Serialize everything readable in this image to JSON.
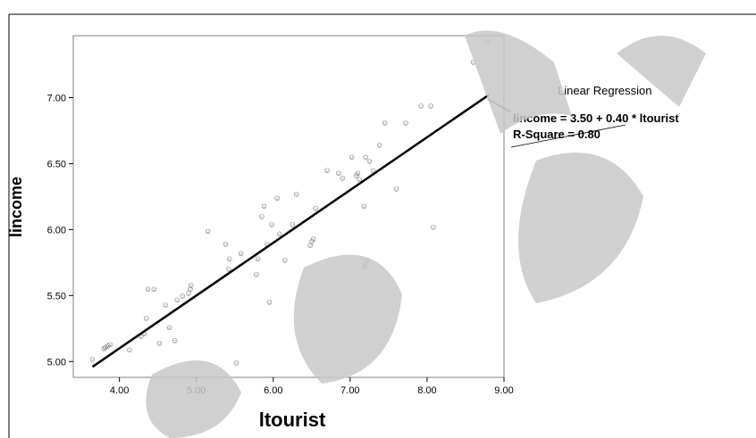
{
  "chart_data": {
    "type": "scatter",
    "title": "",
    "xlabel": "ltourist",
    "ylabel": "lincome",
    "xlim": [
      3.4,
      9.0
    ],
    "ylim": [
      4.88,
      7.47
    ],
    "x_ticks": [
      "4.00",
      "5.00",
      "6.00",
      "7.00",
      "8.00",
      "9.00"
    ],
    "y_ticks": [
      "5.00",
      "5.50",
      "6.00",
      "6.50",
      "7.00"
    ],
    "grid": false,
    "marker_symbol": "☺",
    "points": [
      [
        3.65,
        5.02
      ],
      [
        3.8,
        5.1
      ],
      [
        3.82,
        5.11
      ],
      [
        3.85,
        5.12
      ],
      [
        3.88,
        5.13
      ],
      [
        4.13,
        5.09
      ],
      [
        4.28,
        5.19
      ],
      [
        4.32,
        5.21
      ],
      [
        4.35,
        5.33
      ],
      [
        4.37,
        5.55
      ],
      [
        4.45,
        5.55
      ],
      [
        4.52,
        5.14
      ],
      [
        4.6,
        5.43
      ],
      [
        4.65,
        5.26
      ],
      [
        4.72,
        5.16
      ],
      [
        4.75,
        5.47
      ],
      [
        4.82,
        5.5
      ],
      [
        4.9,
        5.52
      ],
      [
        4.92,
        5.55
      ],
      [
        4.93,
        5.58
      ],
      [
        5.15,
        5.99
      ],
      [
        5.38,
        5.89
      ],
      [
        5.42,
        5.7
      ],
      [
        5.43,
        5.78
      ],
      [
        5.52,
        4.99
      ],
      [
        5.58,
        5.82
      ],
      [
        5.78,
        5.66
      ],
      [
        5.8,
        5.78
      ],
      [
        5.85,
        6.1
      ],
      [
        5.88,
        6.18
      ],
      [
        5.92,
        5.89
      ],
      [
        5.95,
        5.45
      ],
      [
        5.98,
        6.04
      ],
      [
        6.05,
        6.24
      ],
      [
        6.08,
        5.97
      ],
      [
        6.15,
        5.77
      ],
      [
        6.25,
        6.04
      ],
      [
        6.3,
        6.27
      ],
      [
        6.48,
        5.88
      ],
      [
        6.5,
        5.91
      ],
      [
        6.52,
        5.93
      ],
      [
        6.55,
        6.16
      ],
      [
        6.7,
        6.45
      ],
      [
        6.85,
        6.43
      ],
      [
        6.9,
        6.39
      ],
      [
        7.02,
        6.55
      ],
      [
        7.08,
        6.41
      ],
      [
        7.1,
        6.43
      ],
      [
        7.12,
        6.38
      ],
      [
        7.18,
        6.18
      ],
      [
        7.18,
        5.72
      ],
      [
        7.2,
        5.74
      ],
      [
        7.22,
        5.77
      ],
      [
        7.2,
        6.55
      ],
      [
        7.25,
        6.52
      ],
      [
        7.3,
        6.45
      ],
      [
        7.38,
        6.64
      ],
      [
        7.45,
        6.81
      ],
      [
        7.6,
        6.31
      ],
      [
        7.72,
        6.81
      ],
      [
        7.92,
        6.94
      ],
      [
        8.05,
        6.94
      ],
      [
        8.08,
        6.02
      ],
      [
        8.6,
        7.27
      ],
      [
        8.78,
        7.43
      ]
    ],
    "regression": {
      "intercept": 3.5,
      "slope": 0.4,
      "x_range": [
        3.65,
        8.8
      ]
    },
    "annotation": {
      "heading": "Linear Regression",
      "equation": "lincome = 3.50 + 0.40 * ltourist",
      "r_square": "R-Square = 0.80"
    }
  }
}
